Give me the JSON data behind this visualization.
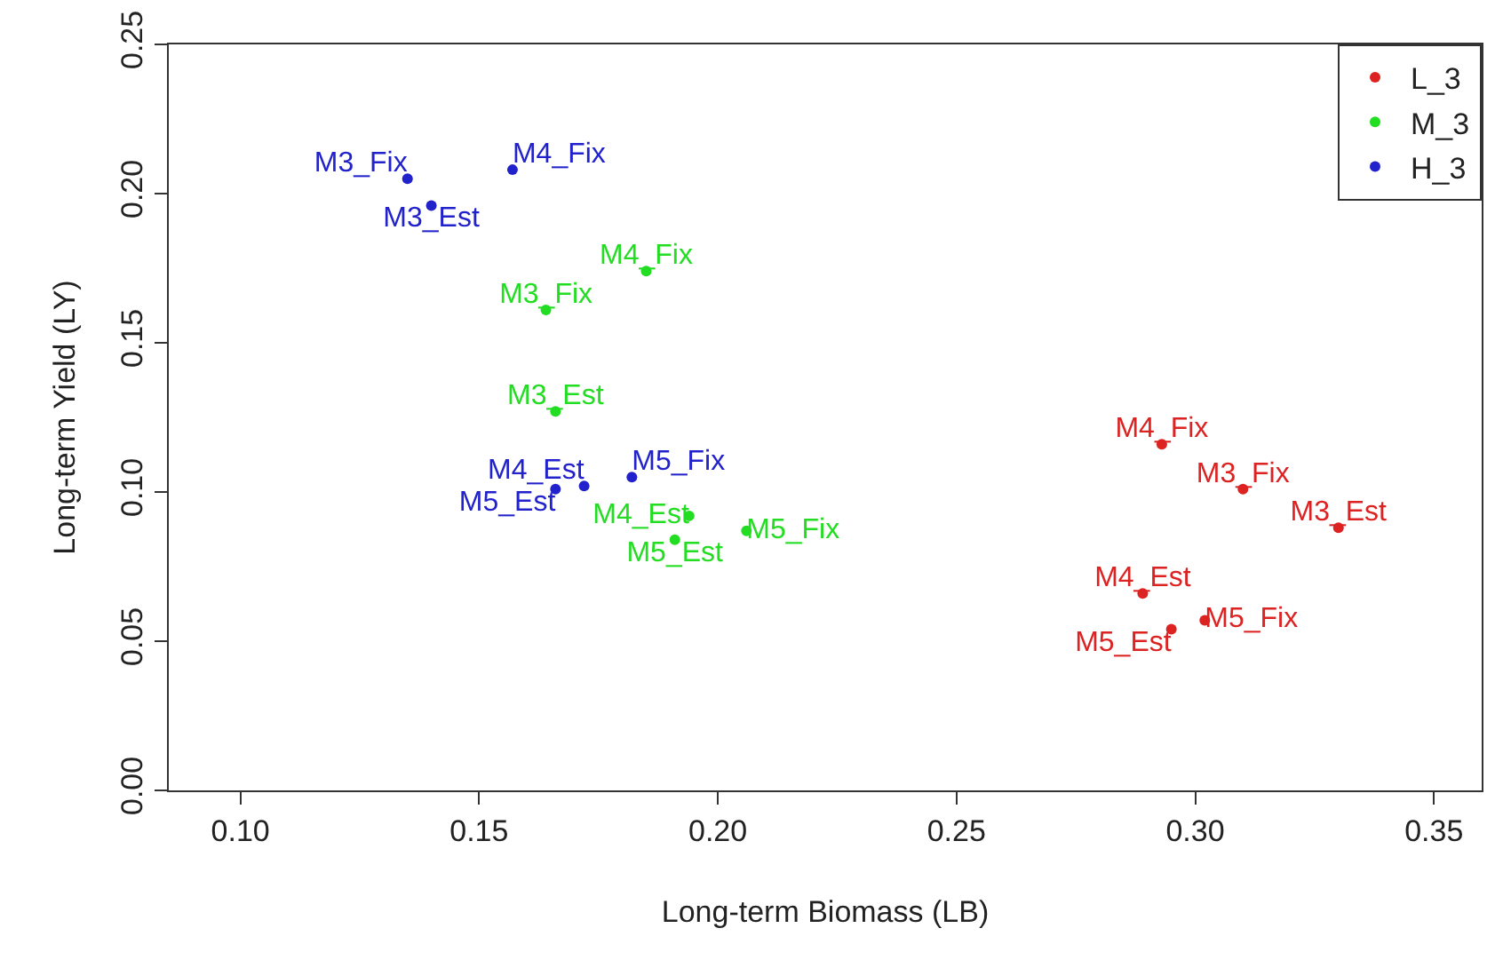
{
  "chart_data": {
    "type": "scatter",
    "xlabel": "Long-term Biomass (LB)",
    "ylabel": "Long-term Yield (LY)",
    "marker": "circle",
    "grid": false,
    "legend": "top right",
    "xlim": [
      0.085,
      0.36
    ],
    "xticks": [
      {
        "value": 0.1,
        "label": "0.10"
      },
      {
        "value": 0.15,
        "label": "0.15"
      },
      {
        "value": 0.2,
        "label": "0.20"
      },
      {
        "value": 0.25,
        "label": "0.25"
      },
      {
        "value": 0.3,
        "label": "0.30"
      },
      {
        "value": 0.35,
        "label": "0.35"
      }
    ],
    "ylim": [
      0,
      0.25
    ],
    "yticks": [
      {
        "value": 0,
        "label": "0.00"
      },
      {
        "value": 0.05,
        "label": "0.05"
      },
      {
        "value": 0.1,
        "label": "0.10"
      },
      {
        "value": 0.15,
        "label": "0.15"
      },
      {
        "value": 0.2,
        "label": "0.20"
      },
      {
        "value": 0.25,
        "label": "0.25"
      }
    ],
    "series": [
      {
        "name": "L_3",
        "color": "#dd2222",
        "x": [
          0.31,
          0.33,
          0.293,
          0.289,
          0.302,
          0.295
        ],
        "values": [
          0.101,
          0.088,
          0.116,
          0.066,
          0.057,
          0.054
        ],
        "value_labels": [
          "M3_Fix",
          "M3_Est",
          "M4_Fix",
          "M4_Est",
          "M5_Fix",
          "M5_Est"
        ]
      },
      {
        "name": "M_3",
        "color": "#22dd22",
        "x": [
          0.164,
          0.166,
          0.185,
          0.194,
          0.206,
          0.191
        ],
        "values": [
          0.161,
          0.127,
          0.174,
          0.092,
          0.087,
          0.084
        ],
        "value_labels": [
          "M3_Fix",
          "M3_Est",
          "M4_Fix",
          "M4_Est",
          "M5_Fix",
          "M5_Est"
        ]
      },
      {
        "name": "H_3",
        "color": "#2222cc",
        "x": [
          0.135,
          0.14,
          0.157,
          0.172,
          0.182,
          0.166
        ],
        "values": [
          0.205,
          0.196,
          0.208,
          0.102,
          0.105,
          0.101
        ],
        "value_labels": [
          "M3_Fix",
          "M3_Est",
          "M4_Fix",
          "M4_Est",
          "M5_Fix",
          "M5_Est"
        ]
      }
    ]
  }
}
